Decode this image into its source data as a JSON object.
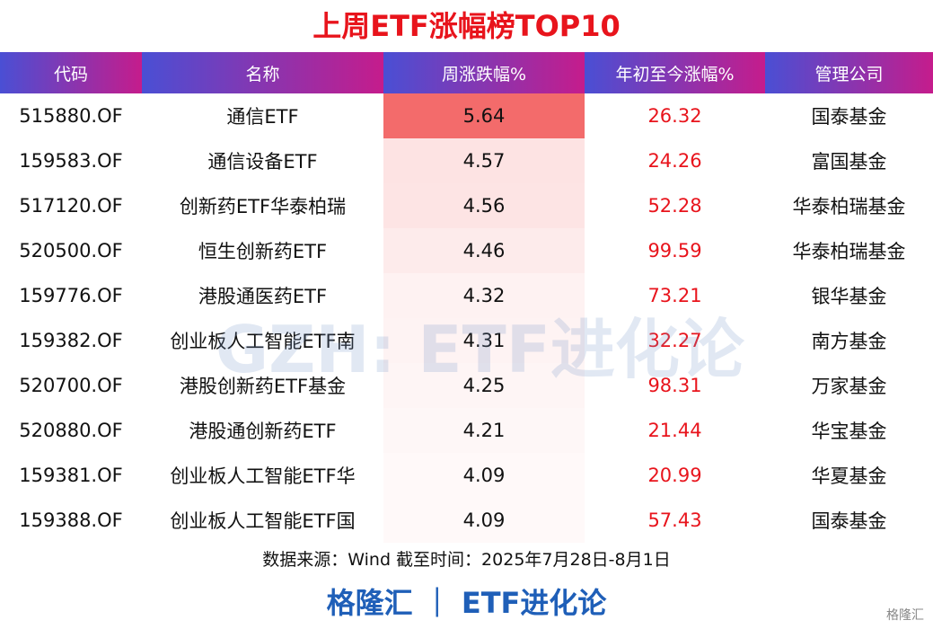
{
  "title": "上周ETF涨幅榜TOP10",
  "table": {
    "header": [
      "代码",
      "名称",
      "周涨跌幅%",
      "年初至今涨幅%",
      "管理公司"
    ],
    "rows": [
      [
        "515880.OF",
        "通信ETF",
        5.64,
        26.32,
        "国泰基金"
      ],
      [
        "159583.OF",
        "通信设备ETF",
        4.57,
        24.26,
        "富国基金"
      ],
      [
        "517120.OF",
        "创新药ETF华泰柏瑞",
        4.56,
        52.28,
        "华泰柏瑞基金"
      ],
      [
        "520500.OF",
        "恒生创新药ETF",
        4.46,
        99.59,
        "华泰柏瑞基金"
      ],
      [
        "159776.OF",
        "港股通医药ETF",
        4.32,
        73.21,
        "银华基金"
      ],
      [
        "159382.OF",
        "创业板人工智能ETF南",
        4.31,
        32.27,
        "南方基金"
      ],
      [
        "520700.OF",
        "港股创新药ETF基金",
        4.25,
        98.31,
        "万家基金"
      ],
      [
        "520880.OF",
        "港股通创新药ETF",
        4.21,
        21.44,
        "华宝基金"
      ],
      [
        "159381.OF",
        "创业板人工智能ETF华",
        4.09,
        20.99,
        "华夏基金"
      ],
      [
        "159388.OF",
        "创业板人工智能ETF国",
        4.09,
        57.43,
        "国泰基金"
      ]
    ]
  },
  "watermark": "GZH: ETF进化论",
  "source": "数据来源：Wind 截至时间：2025年7月28日-8月1日",
  "brand": "格隆汇 ｜ ETF进化论",
  "corner": "格隆汇"
}
